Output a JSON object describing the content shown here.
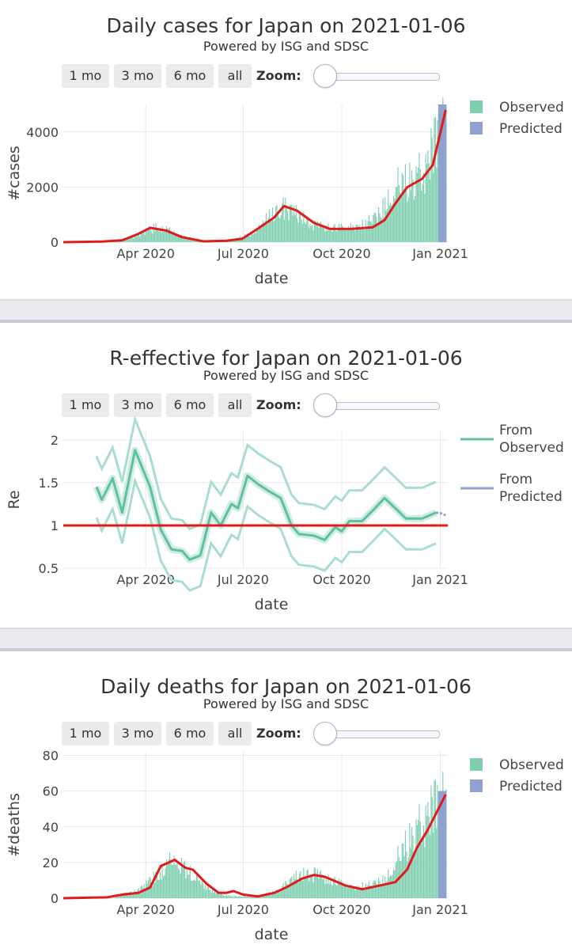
{
  "controls": {
    "buttons": [
      "1 mo",
      "3 mo",
      "6 mo",
      "all"
    ],
    "zoom_label": "Zoom:"
  },
  "chart_data": [
    {
      "type": "bar",
      "title": "Daily cases for Japan on 2021-01-06",
      "subtitle": "Powered by ISG and SDSC",
      "xlabel": "date",
      "ylabel": "#cases",
      "x_ticks": [
        "Apr 2020",
        "Jul 2020",
        "Oct 2020",
        "Jan 2021"
      ],
      "y_ticks": [
        "0",
        "2000",
        "4000"
      ],
      "ylim": [
        0,
        5000
      ],
      "legend": [
        "Observed",
        "Predicted"
      ],
      "legend_position": "top-right",
      "colors": {
        "observed": "#7fcfb0",
        "predicted": "#8ea2d0",
        "trend": "#e01b1b"
      },
      "observed_knots": [
        [
          "2020-01-15",
          0
        ],
        [
          "2020-02-20",
          15
        ],
        [
          "2020-03-10",
          40
        ],
        [
          "2020-03-25",
          250
        ],
        [
          "2020-04-10",
          550
        ],
        [
          "2020-04-20",
          500
        ],
        [
          "2020-05-05",
          200
        ],
        [
          "2020-05-25",
          40
        ],
        [
          "2020-06-20",
          60
        ],
        [
          "2020-07-10",
          350
        ],
        [
          "2020-07-25",
          900
        ],
        [
          "2020-08-05",
          1300
        ],
        [
          "2020-08-20",
          1000
        ],
        [
          "2020-09-05",
          600
        ],
        [
          "2020-09-25",
          500
        ],
        [
          "2020-10-20",
          600
        ],
        [
          "2020-11-05",
          1000
        ],
        [
          "2020-11-20",
          2000
        ],
        [
          "2020-12-05",
          2300
        ],
        [
          "2020-12-20",
          2800
        ],
        [
          "2021-01-02",
          4000
        ],
        [
          "2021-01-06",
          4900
        ]
      ],
      "predicted_range": [
        "2020-12-30",
        "2021-01-06"
      ],
      "predicted_max": 5000,
      "trend": [
        [
          "2020-01-15",
          0
        ],
        [
          "2020-02-20",
          20
        ],
        [
          "2020-03-10",
          70
        ],
        [
          "2020-03-25",
          300
        ],
        [
          "2020-04-05",
          520
        ],
        [
          "2020-04-20",
          420
        ],
        [
          "2020-05-05",
          180
        ],
        [
          "2020-05-25",
          30
        ],
        [
          "2020-06-15",
          50
        ],
        [
          "2020-06-30",
          120
        ],
        [
          "2020-07-15",
          500
        ],
        [
          "2020-07-30",
          900
        ],
        [
          "2020-08-08",
          1310
        ],
        [
          "2020-08-20",
          1150
        ],
        [
          "2020-09-05",
          700
        ],
        [
          "2020-09-20",
          480
        ],
        [
          "2020-10-10",
          480
        ],
        [
          "2020-10-30",
          540
        ],
        [
          "2020-11-10",
          800
        ],
        [
          "2020-11-20",
          1400
        ],
        [
          "2020-12-01",
          1990
        ],
        [
          "2020-12-15",
          2300
        ],
        [
          "2020-12-25",
          2800
        ],
        [
          "2021-01-06",
          4800
        ]
      ]
    },
    {
      "type": "line",
      "title": "R-effective for Japan on 2021-01-06",
      "subtitle": "Powered by ISG and SDSC",
      "xlabel": "date",
      "ylabel": "Re",
      "x_ticks": [
        "Apr 2020",
        "Jul 2020",
        "Oct 2020",
        "Jan 2021"
      ],
      "y_ticks": [
        "0.5",
        "1",
        "1.5",
        "2"
      ],
      "ylim": [
        0.5,
        2.1
      ],
      "legend": [
        "From Observed",
        "From Predicted"
      ],
      "legend_position": "top-right",
      "colors": {
        "observed": "#5fbf9e",
        "band": "#a9dfca",
        "predicted": "#8ea2d0",
        "threshold": "#e01b1b"
      },
      "threshold": 1,
      "series": [
        {
          "name": "From Observed",
          "points": [
            [
              "2020-02-15",
              1.45
            ],
            [
              "2020-02-20",
              1.3
            ],
            [
              "2020-03-01",
              1.55
            ],
            [
              "2020-03-10",
              1.15
            ],
            [
              "2020-03-22",
              1.88
            ],
            [
              "2020-04-05",
              1.45
            ],
            [
              "2020-04-15",
              0.95
            ],
            [
              "2020-04-25",
              0.72
            ],
            [
              "2020-05-05",
              0.7
            ],
            [
              "2020-05-12",
              0.6
            ],
            [
              "2020-05-22",
              0.65
            ],
            [
              "2020-06-01",
              1.15
            ],
            [
              "2020-06-10",
              1.0
            ],
            [
              "2020-06-20",
              1.25
            ],
            [
              "2020-06-26",
              1.2
            ],
            [
              "2020-07-05",
              1.58
            ],
            [
              "2020-07-15",
              1.48
            ],
            [
              "2020-07-25",
              1.4
            ],
            [
              "2020-08-05",
              1.32
            ],
            [
              "2020-08-15",
              1.0
            ],
            [
              "2020-08-22",
              0.9
            ],
            [
              "2020-09-05",
              0.88
            ],
            [
              "2020-09-15",
              0.83
            ],
            [
              "2020-09-25",
              0.98
            ],
            [
              "2020-10-01",
              0.93
            ],
            [
              "2020-10-08",
              1.05
            ],
            [
              "2020-10-20",
              1.05
            ],
            [
              "2020-11-01",
              1.2
            ],
            [
              "2020-11-10",
              1.32
            ],
            [
              "2020-11-20",
              1.2
            ],
            [
              "2020-11-30",
              1.08
            ],
            [
              "2020-12-15",
              1.08
            ],
            [
              "2020-12-28",
              1.15
            ]
          ],
          "band": 0.12
        },
        {
          "name": "From Predicted",
          "points": [
            [
              "2020-12-28",
              1.15
            ],
            [
              "2021-01-02",
              1.14
            ],
            [
              "2021-01-06",
              1.12
            ]
          ]
        }
      ]
    },
    {
      "type": "bar",
      "title": "Daily deaths for Japan on 2021-01-06",
      "subtitle": "Powered by ISG and SDSC",
      "xlabel": "date",
      "ylabel": "#deaths",
      "x_ticks": [
        "Apr 2020",
        "Jul 2020",
        "Oct 2020",
        "Jan 2021"
      ],
      "y_ticks": [
        "0",
        "20",
        "40",
        "60",
        "80"
      ],
      "ylim": [
        0,
        82
      ],
      "legend": [
        "Observed",
        "Predicted"
      ],
      "legend_position": "top-right",
      "colors": {
        "observed": "#7fcfb0",
        "predicted": "#8ea2d0",
        "trend": "#e01b1b"
      },
      "observed_knots": [
        [
          "2020-01-15",
          0
        ],
        [
          "2020-03-01",
          0
        ],
        [
          "2020-03-10",
          2
        ],
        [
          "2020-03-25",
          4
        ],
        [
          "2020-04-10",
          12
        ],
        [
          "2020-04-25",
          22
        ],
        [
          "2020-05-05",
          18
        ],
        [
          "2020-05-15",
          12
        ],
        [
          "2020-06-01",
          4
        ],
        [
          "2020-06-20",
          1
        ],
        [
          "2020-07-15",
          1
        ],
        [
          "2020-08-01",
          4
        ],
        [
          "2020-08-20",
          12
        ],
        [
          "2020-09-01",
          14
        ],
        [
          "2020-09-20",
          10
        ],
        [
          "2020-10-10",
          6
        ],
        [
          "2020-10-25",
          7
        ],
        [
          "2020-11-10",
          10
        ],
        [
          "2020-11-25",
          25
        ],
        [
          "2020-12-10",
          40
        ],
        [
          "2020-12-25",
          48
        ],
        [
          "2021-01-06",
          60
        ]
      ],
      "predicted_range": [
        "2020-12-30",
        "2021-01-06"
      ],
      "predicted_max": 60,
      "trend": [
        [
          "2020-01-15",
          0
        ],
        [
          "2020-02-25",
          0.5
        ],
        [
          "2020-03-10",
          2
        ],
        [
          "2020-03-25",
          3
        ],
        [
          "2020-04-05",
          6
        ],
        [
          "2020-04-15",
          18
        ],
        [
          "2020-04-28",
          21.5
        ],
        [
          "2020-05-08",
          17
        ],
        [
          "2020-05-15",
          16
        ],
        [
          "2020-05-28",
          8
        ],
        [
          "2020-06-08",
          3
        ],
        [
          "2020-06-15",
          3
        ],
        [
          "2020-06-22",
          4
        ],
        [
          "2020-07-01",
          2
        ],
        [
          "2020-07-15",
          1
        ],
        [
          "2020-07-30",
          3
        ],
        [
          "2020-08-10",
          6
        ],
        [
          "2020-08-25",
          11
        ],
        [
          "2020-09-05",
          13
        ],
        [
          "2020-09-15",
          12
        ],
        [
          "2020-10-05",
          7
        ],
        [
          "2020-10-20",
          5
        ],
        [
          "2020-11-05",
          7
        ],
        [
          "2020-11-20",
          9
        ],
        [
          "2020-12-01",
          16
        ],
        [
          "2020-12-10",
          28
        ],
        [
          "2020-12-20",
          38
        ],
        [
          "2021-01-06",
          58
        ]
      ]
    }
  ]
}
